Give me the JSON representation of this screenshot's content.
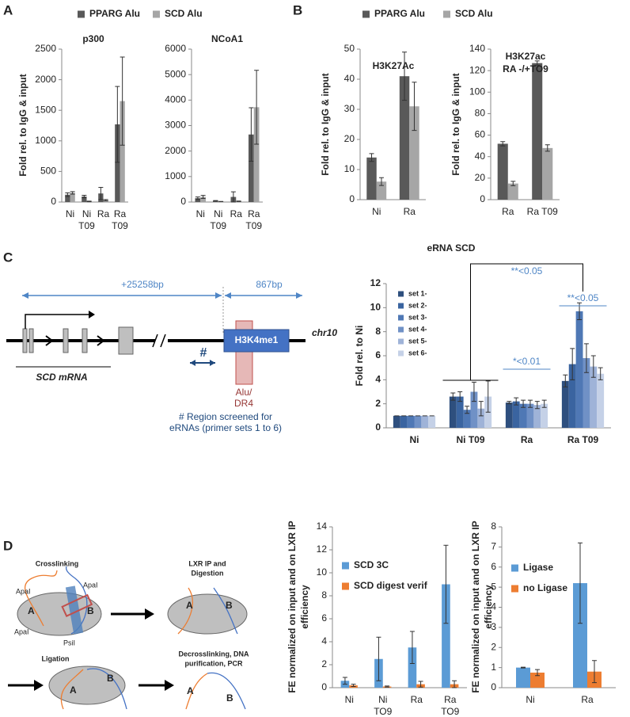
{
  "panels": [
    "A",
    "B",
    "C",
    "D"
  ],
  "chart_data": [
    {
      "type": "bar",
      "title": "p300",
      "y_label": [
        "Fold rel. to IgG & input"
      ],
      "categories": [
        "Ni",
        "Ni T09",
        "Ra",
        "Ra T09"
      ],
      "series": [
        {
          "name": "PPARG Alu",
          "color": "#595959",
          "values": [
            120,
            90,
            140,
            1270
          ],
          "errors": [
            30,
            20,
            100,
            620
          ]
        },
        {
          "name": "SCD Alu",
          "color": "#a6a6a6",
          "values": [
            150,
            10,
            30,
            1650
          ],
          "errors": [
            20,
            5,
            10,
            720
          ]
        }
      ],
      "ylim": [
        0,
        2500
      ],
      "yticks": [
        0,
        500,
        1000,
        1500,
        2000,
        2500
      ]
    },
    {
      "type": "bar",
      "title": "NCoA1",
      "categories": [
        "Ni",
        "Ni T09",
        "Ra",
        "Ra T09"
      ],
      "series": [
        {
          "color": "#595959",
          "values": [
            150,
            50,
            200,
            2650
          ],
          "errors": [
            50,
            10,
            200,
            1050
          ]
        },
        {
          "color": "#a6a6a6",
          "values": [
            200,
            20,
            30,
            3720
          ],
          "errors": [
            60,
            5,
            10,
            1450
          ]
        }
      ],
      "ylim": [
        0,
        6000
      ],
      "yticks": [
        0,
        1000,
        2000,
        3000,
        4000,
        5000,
        6000
      ]
    },
    {
      "type": "bar",
      "title": "H3K27Ac",
      "y_label": [
        "Fold rel. to IgG & input"
      ],
      "categories": [
        "Ni",
        "Ra"
      ],
      "series": [
        {
          "name": "PPARG Alu",
          "color": "#595959",
          "values": [
            14,
            41
          ],
          "errors": [
            1.3,
            8
          ]
        },
        {
          "name": "SCD Alu",
          "color": "#a6a6a6",
          "values": [
            6,
            31
          ],
          "errors": [
            1.3,
            8
          ]
        }
      ],
      "ylim": [
        0,
        50
      ],
      "yticks": [
        0,
        10,
        20,
        30,
        40,
        50
      ]
    },
    {
      "type": "bar",
      "title": [
        "H3K27ac",
        "RA -/+TO9"
      ],
      "y_label": [
        "Fold rel. to IgG  & input"
      ],
      "categories": [
        "Ra",
        "Ra T09"
      ],
      "series": [
        {
          "color": "#595959",
          "values": [
            52,
            127
          ],
          "errors": [
            2,
            2
          ]
        },
        {
          "color": "#a6a6a6",
          "values": [
            15,
            48
          ],
          "errors": [
            2,
            3
          ]
        }
      ],
      "ylim": [
        0,
        140
      ],
      "yticks": [
        0,
        20,
        40,
        60,
        80,
        100,
        120,
        140
      ]
    },
    {
      "type": "bar",
      "title": "eRNA SCD",
      "y_label": [
        "Fold rel. to Ni"
      ],
      "categories": [
        "Ni",
        "Ni T09",
        "Ra",
        "Ra T09"
      ],
      "series": [
        {
          "name": "set 1-",
          "color": "#2e4f7e",
          "values": [
            1,
            2.6,
            2.1,
            3.9
          ],
          "errors": [
            0,
            0.3,
            0.1,
            0.5
          ]
        },
        {
          "name": "set 2-",
          "color": "#3a64a0",
          "values": [
            1,
            2.6,
            2.2,
            5.3
          ],
          "errors": [
            0,
            0.4,
            0.3,
            1.3
          ]
        },
        {
          "name": "set 3-",
          "color": "#4f78b5",
          "values": [
            1,
            1.5,
            2.0,
            9.7
          ],
          "errors": [
            0,
            0.3,
            0.3,
            0.7
          ]
        },
        {
          "name": "set 4-",
          "color": "#7091c6",
          "values": [
            1,
            3.0,
            2.0,
            5.8
          ],
          "errors": [
            0,
            0.8,
            0.3,
            1.2
          ]
        },
        {
          "name": "set 5-",
          "color": "#9fb3d8",
          "values": [
            1,
            1.6,
            1.9,
            5.1
          ],
          "errors": [
            0,
            0.6,
            0.3,
            0.9
          ]
        },
        {
          "name": "set 6-",
          "color": "#c5d1e7",
          "values": [
            1,
            2.6,
            2.0,
            4.5
          ],
          "errors": [
            0,
            1.3,
            0.3,
            0.5
          ]
        }
      ],
      "annotations": [
        "**<0.05",
        "**<0.05",
        "*<0.01"
      ],
      "ylim": [
        0,
        12
      ],
      "yticks": [
        0,
        2,
        4,
        6,
        8,
        10,
        12
      ]
    },
    {
      "type": "bar",
      "y_label": [
        "FE normalized on input and on LXR IP",
        "efficiency"
      ],
      "categories": [
        "Ni",
        "Ni TO9",
        "Ra",
        "Ra TO9"
      ],
      "series": [
        {
          "name": "SCD 3C",
          "color": "#5b9bd5",
          "values": [
            0.6,
            2.5,
            3.5,
            9.0
          ],
          "errors": [
            0.3,
            1.9,
            1.4,
            3.4
          ]
        },
        {
          "name": "SCD digest verif",
          "color": "#ed7d31",
          "values": [
            0.2,
            0.1,
            0.3,
            0.3
          ],
          "errors": [
            0.1,
            0.05,
            0.25,
            0.3
          ]
        }
      ],
      "ylim": [
        0,
        14
      ],
      "yticks": [
        0,
        2,
        4,
        6,
        8,
        10,
        12,
        14
      ]
    },
    {
      "type": "bar",
      "y_label": [
        "FE normalized on input and on LXR IP",
        "efficiency"
      ],
      "categories": [
        "Ni",
        "Ra"
      ],
      "series": [
        {
          "name": "Ligase",
          "color": "#5b9bd5",
          "values": [
            1.0,
            5.2
          ],
          "errors": [
            0.02,
            2.0
          ]
        },
        {
          "name": "no Ligase",
          "color": "#ed7d31",
          "values": [
            0.75,
            0.8
          ],
          "errors": [
            0.15,
            0.55
          ]
        }
      ],
      "ylim": [
        0,
        8
      ],
      "yticks": [
        0,
        1,
        2,
        3,
        4,
        5,
        6,
        7,
        8
      ]
    }
  ],
  "diagram_c": {
    "distance_1": "+25258bp",
    "distance_2": "867bp",
    "mark": "H3K4me1",
    "chromosome": "chr10",
    "gene": "SCD mRNA",
    "region_symbol": "#",
    "element": [
      "Alu/",
      "DR4"
    ],
    "region_note": [
      "# Region screened for",
      "eRNAs (primer sets 1 to 6)"
    ]
  },
  "diagram_d": {
    "steps": [
      [
        "Crosslinking"
      ],
      [
        "LXR IP and",
        "Digestion"
      ],
      [
        "Ligation"
      ],
      [
        "Decrosslinking, DNA",
        "purification, PCR"
      ]
    ],
    "sites": [
      "ApaI",
      "ApaI",
      "ApaI",
      "PsiI"
    ],
    "fragments": [
      "A",
      "B"
    ]
  }
}
